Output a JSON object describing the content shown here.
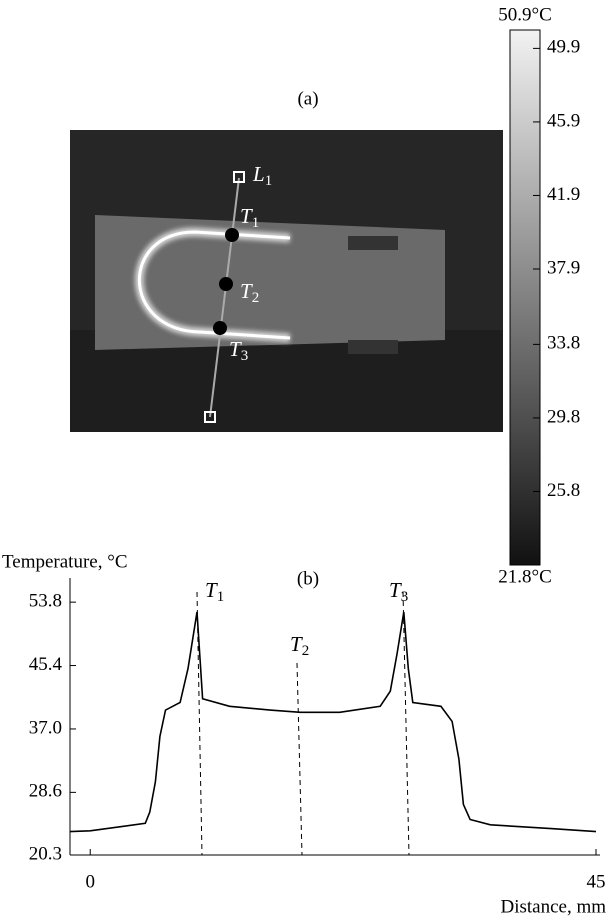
{
  "panel_a": {
    "title": "(a)",
    "labels": [
      {
        "letter": "L",
        "sub": "1"
      },
      {
        "letter": "T",
        "sub": "1"
      },
      {
        "letter": "T",
        "sub": "2"
      },
      {
        "letter": "T",
        "sub": "3"
      }
    ]
  },
  "colorbar": {
    "lim": [
      {
        "value": 21.8,
        "label": "21.8°C"
      },
      {
        "value": 50.9,
        "label": "50.9°C"
      }
    ],
    "ticks": [
      {
        "value": 49.9,
        "label": "49.9"
      },
      {
        "value": 45.9,
        "label": "45.9"
      },
      {
        "value": 41.9,
        "label": "41.9"
      },
      {
        "value": 37.9,
        "label": "37.9"
      },
      {
        "value": 33.8,
        "label": "33.8"
      },
      {
        "value": 29.8,
        "label": "29.8"
      },
      {
        "value": 25.8,
        "label": "25.8"
      }
    ]
  },
  "chart_data": {
    "type": "line",
    "title": "(b)",
    "y_label": "Temperature, °C",
    "x_label": "Distance, mm",
    "x": [
      -1.8,
      0,
      4.9,
      5.3,
      5.8,
      6.2,
      6.7,
      8.0,
      8.7,
      9.5,
      10.0,
      12.4,
      16.0,
      18.7,
      22.2,
      25.8,
      26.7,
      27.3,
      27.9,
      28.3,
      28.7,
      31.2,
      32.2,
      32.8,
      33.2,
      33.8,
      35.6,
      41.0,
      45
    ],
    "series": [
      {
        "color": "#000000",
        "values": [
          23.4,
          23.5,
          24.5,
          26,
          30,
          36,
          39.5,
          40.5,
          45,
          52.5,
          41,
          40,
          39.5,
          39.2,
          39.2,
          40,
          42,
          47,
          52.5,
          45,
          40.5,
          40,
          38,
          33,
          27,
          25,
          24.3,
          23.8,
          23.4
        ]
      }
    ],
    "xlim": [
      -1.8,
      45
    ],
    "ylim": [
      20.3,
      57
    ],
    "xticks": [
      0,
      45
    ],
    "yticks": [
      20.3,
      28.6,
      {
        "value": 37,
        "label": "37.0"
      },
      45.4,
      53.8
    ],
    "annotations": [
      {
        "letter": "T",
        "sub": "1"
      },
      {
        "letter": "T",
        "sub": "2"
      },
      {
        "letter": "T",
        "sub": "3"
      }
    ]
  }
}
